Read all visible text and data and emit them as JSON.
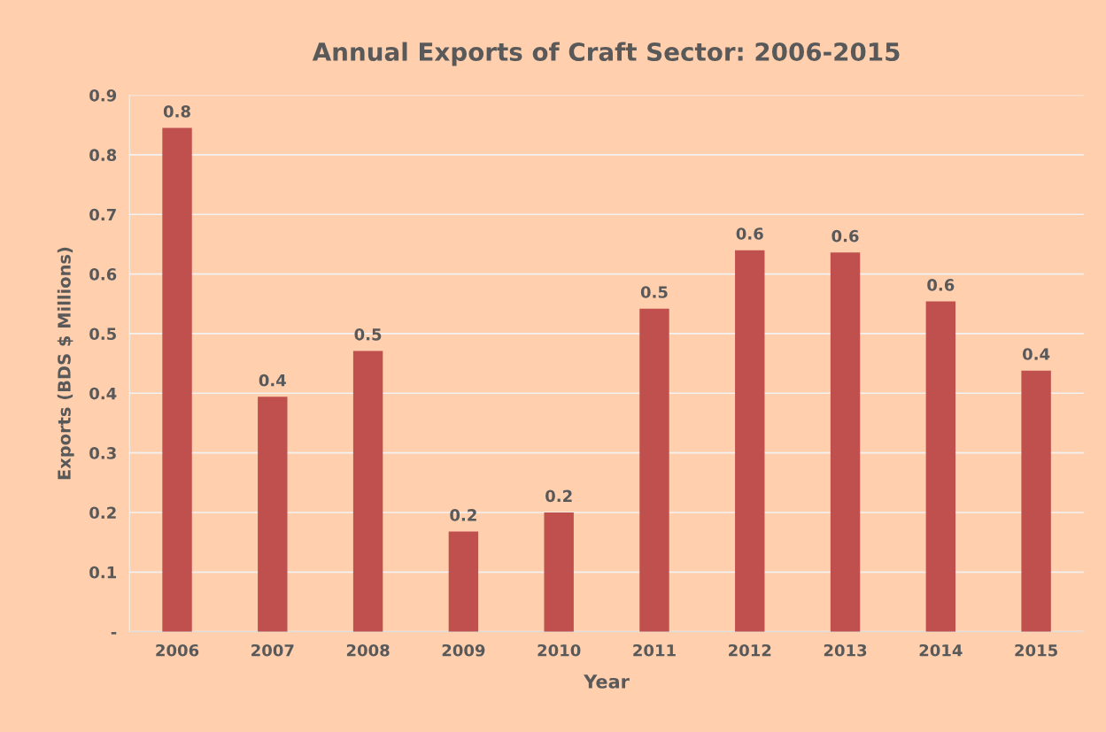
{
  "chart_data": {
    "type": "bar",
    "title": "Annual Exports of Craft Sector: 2006-2015",
    "xlabel": "Year",
    "ylabel": "Exports (BDS $ Millions)",
    "categories": [
      "2006",
      "2007",
      "2008",
      "2009",
      "2010",
      "2011",
      "2012",
      "2013",
      "2014",
      "2015"
    ],
    "values": [
      0.845,
      0.394,
      0.471,
      0.168,
      0.2,
      0.542,
      0.64,
      0.636,
      0.554,
      0.438
    ],
    "value_labels": [
      "0.8",
      "0.4",
      "0.5",
      "0.2",
      "0.2",
      "0.5",
      "0.6",
      "0.6",
      "0.6",
      "0.4"
    ],
    "color": "#c0504d",
    "ylim": [
      0,
      0.9
    ],
    "yticks": [
      {
        "value": 0,
        "label": "-"
      },
      0.1,
      0.2,
      0.3,
      0.4,
      0.5,
      0.6,
      0.7,
      0.8,
      0.9
    ],
    "grid": "y",
    "legend": false
  }
}
